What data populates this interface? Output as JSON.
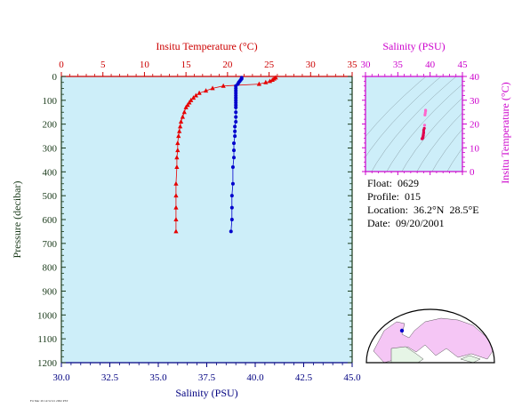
{
  "colors": {
    "plot_bg": "#cdeef9",
    "temp": "#e60000",
    "salinity": "#0000cc",
    "inset_axis": "#cc00cc",
    "axis_dark": "#1a3a1a",
    "top_axis": "#cc0000",
    "bottom_axis": "#000080",
    "map_land": "#f5c6f5",
    "map_land2": "#e6f5e6"
  },
  "info": {
    "float": "Float:  0629",
    "profile": "Profile:  015",
    "location": "Location:  36.2°N  28.5°E",
    "date": "Date:  09/20/2001"
  },
  "stamp": "Fri Mar 29 14:52:21 2002 PST",
  "chart_data": [
    {
      "type": "line",
      "name": "profile",
      "title": "",
      "xlabel_top": "Insitu Temperature (°C)",
      "xlabel_bottom": "Salinity (PSU)",
      "ylabel": "Pressure (decibar)",
      "temp_xlim": [
        0,
        35
      ],
      "temp_ticks": [
        "0",
        "5",
        "10",
        "15",
        "20",
        "25",
        "30",
        "35"
      ],
      "sal_xlim": [
        30,
        45
      ],
      "sal_ticks": [
        "30.0",
        "32.5",
        "35.0",
        "37.5",
        "40.0",
        "42.5",
        "45.0"
      ],
      "ylim": [
        0,
        1200
      ],
      "y_ticks": [
        "0",
        "100",
        "200",
        "300",
        "400",
        "500",
        "600",
        "700",
        "800",
        "900",
        "1000",
        "1100",
        "1200"
      ],
      "y_reversed": true,
      "grid": false,
      "series": [
        {
          "name": "Insitu Temperature",
          "marker": "triangle",
          "x": [
            25.8,
            25.6,
            25.4,
            25.1,
            24.6,
            23.8,
            19.5,
            18.2,
            17.4,
            16.6,
            16.2,
            15.9,
            15.6,
            15.4,
            15.2,
            15.0,
            14.8,
            14.6,
            14.4,
            14.3,
            14.2,
            14.1,
            14.0,
            14.0,
            13.9,
            13.9,
            13.8,
            13.8,
            13.8,
            13.8,
            13.8
          ],
          "y": [
            5,
            10,
            15,
            20,
            25,
            32,
            40,
            50,
            60,
            70,
            80,
            90,
            100,
            110,
            120,
            130,
            150,
            170,
            190,
            210,
            230,
            250,
            280,
            310,
            340,
            380,
            450,
            500,
            550,
            600,
            650
          ]
        },
        {
          "name": "Salinity",
          "marker": "circle",
          "x": [
            39.3,
            39.3,
            39.25,
            39.2,
            39.15,
            39.1,
            39.0,
            39.0,
            39.0,
            39.0,
            39.0,
            39.0,
            39.0,
            39.0,
            39.0,
            39.0,
            39.0,
            39.0,
            39.0,
            38.95,
            38.95,
            38.95,
            38.9,
            38.9,
            38.9,
            38.85,
            38.85,
            38.8,
            38.8,
            38.8,
            38.75
          ],
          "y": [
            5,
            10,
            15,
            20,
            25,
            32,
            40,
            50,
            60,
            70,
            80,
            90,
            100,
            110,
            120,
            130,
            150,
            170,
            190,
            210,
            230,
            250,
            280,
            310,
            340,
            380,
            450,
            500,
            550,
            600,
            650
          ]
        }
      ]
    },
    {
      "type": "scatter",
      "name": "ts-diagram",
      "xlabel": "Salinity (PSU)",
      "ylabel": "Insitu Temperature (°C)",
      "xlim": [
        30,
        45
      ],
      "ylim": [
        0,
        40
      ],
      "x_ticks": [
        "30",
        "35",
        "40",
        "45"
      ],
      "y_ticks": [
        "0",
        "10",
        "20",
        "30",
        "40"
      ],
      "points": {
        "x": [
          39.3,
          39.3,
          39.25,
          39.2,
          39.15,
          39.1,
          39.0,
          39.0,
          39.0,
          38.95,
          38.95,
          38.9,
          38.9,
          38.85,
          38.8,
          38.8,
          38.75
        ],
        "y": [
          25.8,
          25.4,
          24.6,
          23.8,
          19.5,
          18.2,
          17.4,
          16.6,
          16.2,
          15.6,
          15.2,
          14.8,
          14.4,
          14.1,
          14.0,
          13.9,
          13.8
        ]
      }
    }
  ]
}
